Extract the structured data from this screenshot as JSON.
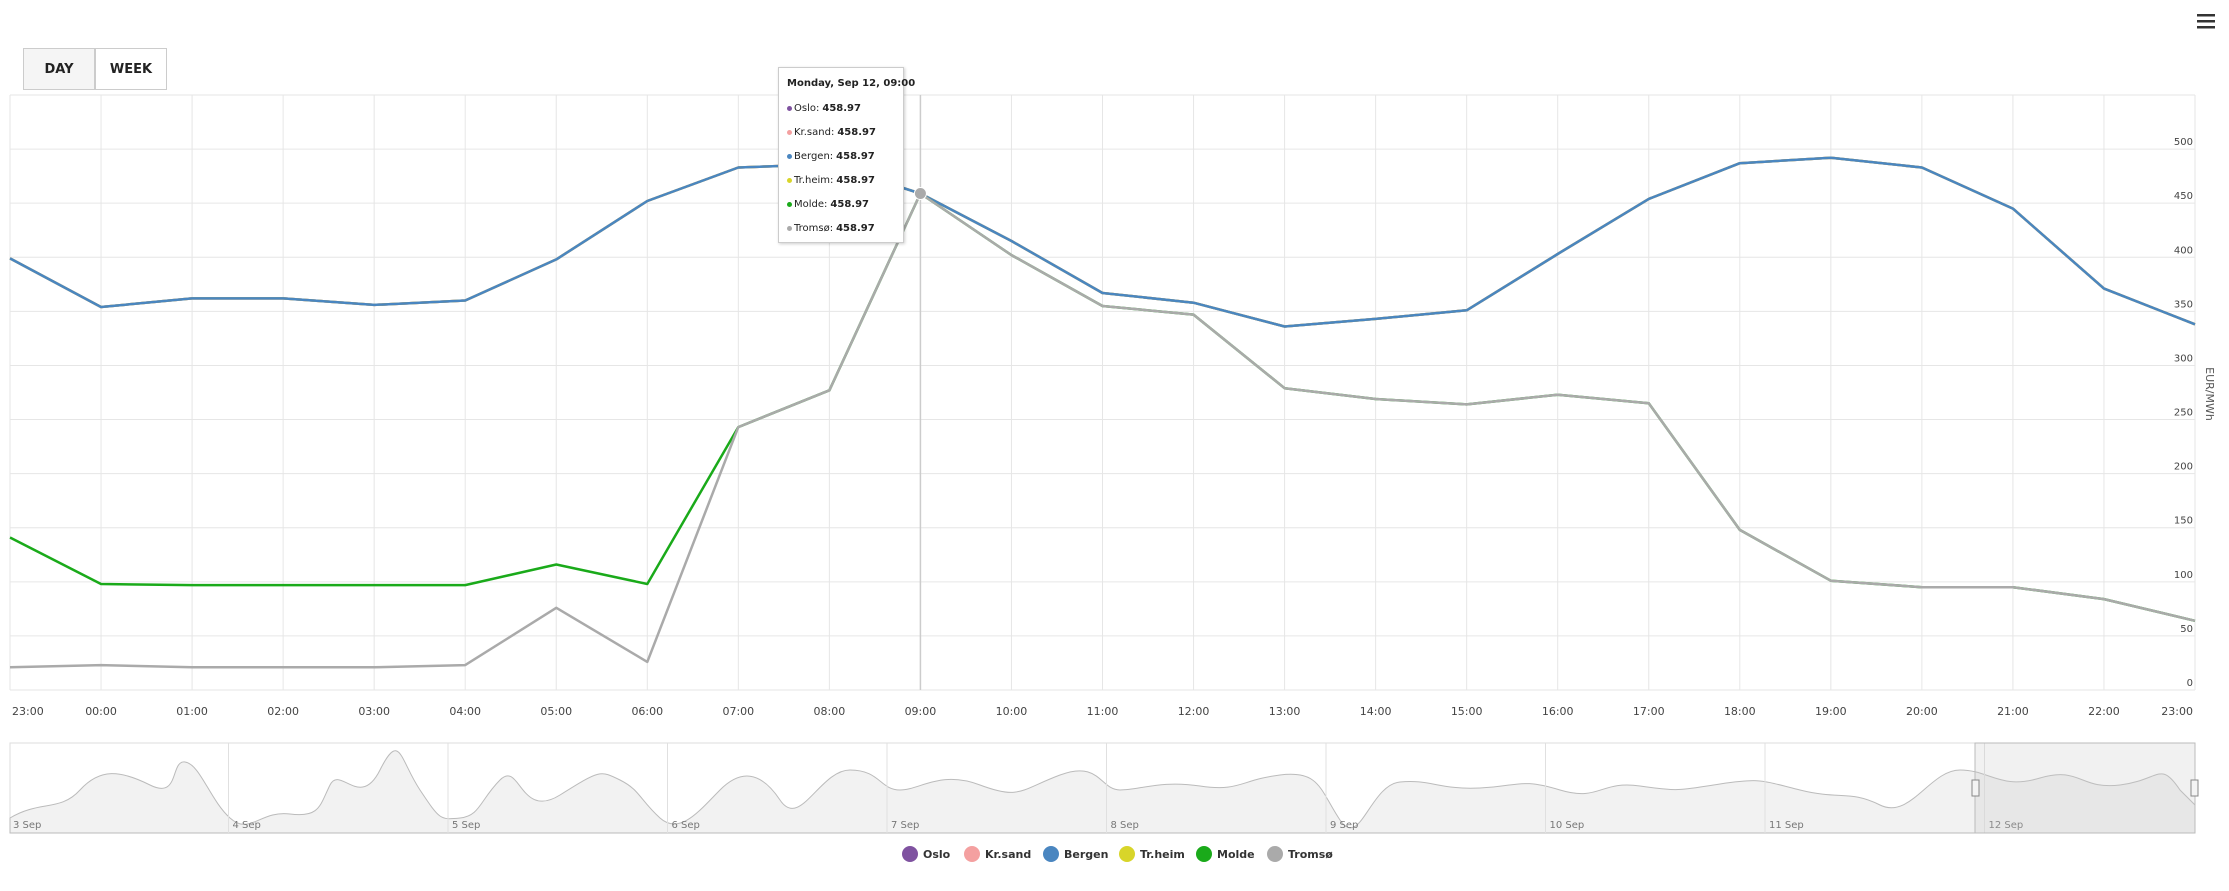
{
  "chart_data": {
    "type": "line",
    "y_label": "EUR/MWh",
    "categories": [
      "23:00",
      "00:00",
      "01:00",
      "02:00",
      "03:00",
      "04:00",
      "05:00",
      "06:00",
      "07:00",
      "08:00",
      "09:00",
      "10:00",
      "11:00",
      "12:00",
      "13:00",
      "14:00",
      "15:00",
      "16:00",
      "17:00",
      "18:00",
      "19:00",
      "20:00",
      "21:00",
      "22:00",
      "23:00"
    ],
    "series": [
      {
        "name": "Oslo",
        "color": "#7f52a0",
        "values": [
          399,
          354,
          362,
          362,
          356,
          360,
          398,
          452,
          483,
          486,
          458.97,
          415,
          367,
          358,
          336,
          343,
          351,
          403,
          454,
          487,
          492,
          483,
          445,
          371,
          338
        ]
      },
      {
        "name": "Kr.sand",
        "color": "#f4a0a0",
        "values": [
          399,
          354,
          362,
          362,
          356,
          360,
          398,
          452,
          483,
          486,
          458.97,
          415,
          367,
          358,
          336,
          343,
          351,
          403,
          454,
          487,
          492,
          483,
          445,
          371,
          338
        ]
      },
      {
        "name": "Bergen",
        "color": "#4a86c0",
        "values": [
          399,
          354,
          362,
          362,
          356,
          360,
          398,
          452,
          483,
          486,
          458.97,
          415,
          367,
          358,
          336,
          343,
          351,
          403,
          454,
          487,
          492,
          483,
          445,
          371,
          338
        ]
      },
      {
        "name": "Tr.heim",
        "color": "#d8d52a",
        "values": [
          399,
          354,
          362,
          362,
          356,
          360,
          398,
          452,
          483,
          486,
          458.97,
          415,
          367,
          358,
          336,
          343,
          351,
          403,
          454,
          487,
          492,
          483,
          445,
          371,
          338
        ]
      },
      {
        "name": "Molde",
        "color": "#1aaa1a",
        "values": [
          141,
          98,
          97,
          97,
          97,
          97,
          116,
          98,
          243,
          277,
          458.97,
          402,
          355,
          347,
          279,
          269,
          264,
          273,
          265,
          148,
          101,
          95,
          95,
          84,
          64
        ]
      },
      {
        "name": "Tromsø",
        "color": "#aaaaaa",
        "values": [
          21,
          23,
          21,
          21,
          21,
          23,
          76,
          26,
          243,
          277,
          458.97,
          402,
          355,
          347,
          279,
          269,
          264,
          273,
          265,
          148,
          101,
          95,
          95,
          84,
          64
        ]
      }
    ],
    "ylim": [
      0,
      550
    ],
    "yticks": [
      0,
      50,
      100,
      150,
      200,
      250,
      300,
      350,
      400,
      450,
      500
    ],
    "grid": true,
    "tooltip": {
      "title": "Monday, Sep 12, 09:00",
      "index": 10
    },
    "buttons": [
      "DAY",
      "WEEK"
    ],
    "navigator": {
      "labels": [
        "3 Sep",
        "4 Sep",
        "5 Sep",
        "6 Sep",
        "7 Sep",
        "8 Sep",
        "9 Sep",
        "10 Sep",
        "11 Sep",
        "12 Sep"
      ]
    }
  }
}
